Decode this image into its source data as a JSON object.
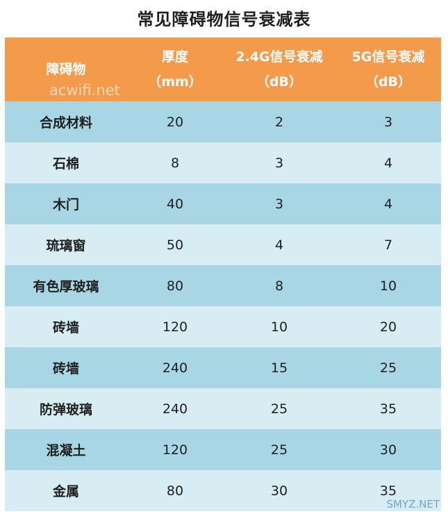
{
  "title": "常见障碍物信号衰减表",
  "header": {
    "col1": "障碍物",
    "col2_line1": "厚度",
    "col2_line2": "（mm）",
    "col3_line1": "2.4G信号衰减",
    "col3_line2": "（dB）",
    "col4_line1": "5G信号衰减",
    "col4_line2": "（dB）"
  },
  "rows": [
    {
      "obstacle": "合成材料",
      "thickness": "20",
      "att24": "2",
      "att5": "3"
    },
    {
      "obstacle": "石棉",
      "thickness": "8",
      "att24": "3",
      "att5": "4"
    },
    {
      "obstacle": "木门",
      "thickness": "40",
      "att24": "3",
      "att5": "4"
    },
    {
      "obstacle": "琉璃窗",
      "thickness": "50",
      "att24": "4",
      "att5": "7"
    },
    {
      "obstacle": "有色厚玻璃",
      "thickness": "80",
      "att24": "8",
      "att5": "10"
    },
    {
      "obstacle": "砖墙",
      "thickness": "120",
      "att24": "10",
      "att5": "20"
    },
    {
      "obstacle": "砖墙",
      "thickness": "240",
      "att24": "15",
      "att5": "25"
    },
    {
      "obstacle": "防弹玻璃",
      "thickness": "240",
      "att24": "25",
      "att5": "35"
    },
    {
      "obstacle": "混凝土",
      "thickness": "120",
      "att24": "25",
      "att5": "30"
    },
    {
      "obstacle": "金属",
      "thickness": "80",
      "att24": "30",
      "att5": "35"
    }
  ],
  "watermarks": {
    "header": "acwifi.net",
    "corner": "SMYZ.NET"
  },
  "colors": {
    "header_bg": "#f39a4b",
    "row_dark": "#a9d6e4",
    "row_light": "#d7ecf3"
  }
}
